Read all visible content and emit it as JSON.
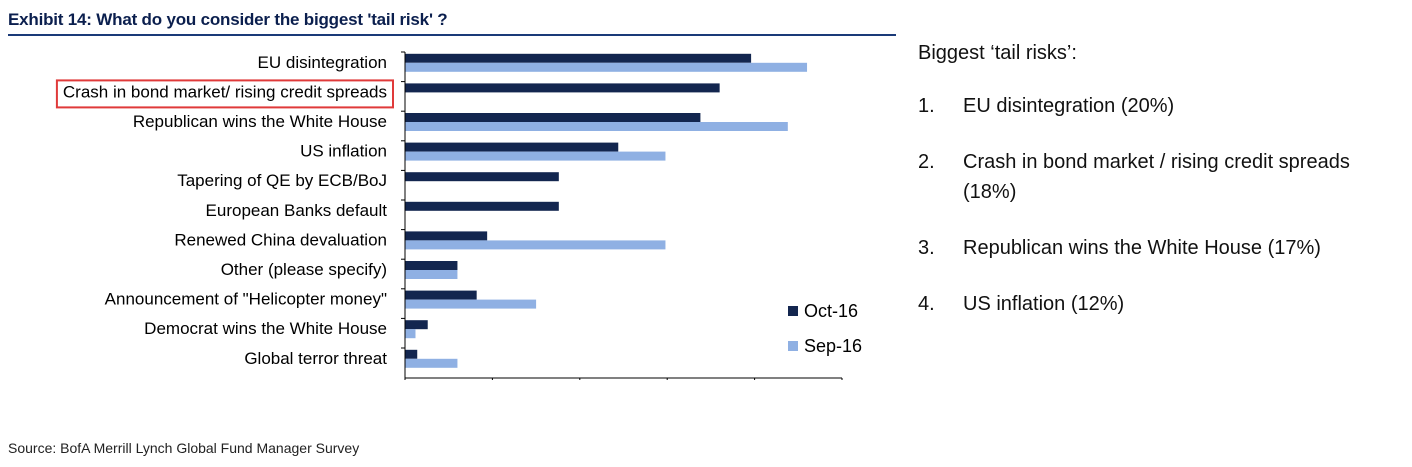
{
  "exhibit": {
    "title": "Exhibit 14: What do you consider the biggest 'tail risk' ?",
    "source": "Source: BofA Merrill Lynch Global Fund Manager Survey"
  },
  "colors": {
    "oct": "#13264f",
    "sep": "#8fb0e3",
    "highlight": "#e03a3a",
    "axis": "#000000"
  },
  "chart_data": {
    "type": "bar",
    "orientation": "horizontal",
    "title": "",
    "xlabel": "",
    "ylabel": "",
    "xlim": [
      0,
      25
    ],
    "xticks": [
      0,
      5,
      10,
      15,
      20,
      25
    ],
    "grid": false,
    "legend_position": "bottom-right",
    "highlighted_category": "Crash in bond market/ rising credit spreads",
    "categories": [
      "EU disintegration",
      "Crash in bond market/ rising credit spreads",
      "Republican wins the White House",
      "US inflation",
      "Tapering of QE by ECB/BoJ",
      "European Banks default",
      "Renewed China devaluation",
      "Other (please specify)",
      "Announcement of \"Helicopter money\"",
      "Democrat wins the White House",
      "Global terror threat"
    ],
    "series": [
      {
        "name": "Oct-16",
        "values": [
          19.8,
          18.0,
          16.9,
          12.2,
          8.8,
          8.8,
          4.7,
          3.0,
          4.1,
          1.3,
          0.7
        ]
      },
      {
        "name": "Sep-16",
        "values": [
          23.0,
          null,
          21.9,
          14.9,
          null,
          null,
          14.9,
          3.0,
          7.5,
          0.6,
          3.0
        ]
      }
    ]
  },
  "side_panel": {
    "heading": "Biggest ‘tail risks’:",
    "items": [
      {
        "num": "1.",
        "text": "EU disintegration (20%)"
      },
      {
        "num": "2.",
        "text": "Crash in bond market / rising credit spreads (18%)"
      },
      {
        "num": "3.",
        "text": "Republican wins the White House (17%)"
      },
      {
        "num": "4.",
        "text": "US inflation (12%)"
      }
    ]
  }
}
